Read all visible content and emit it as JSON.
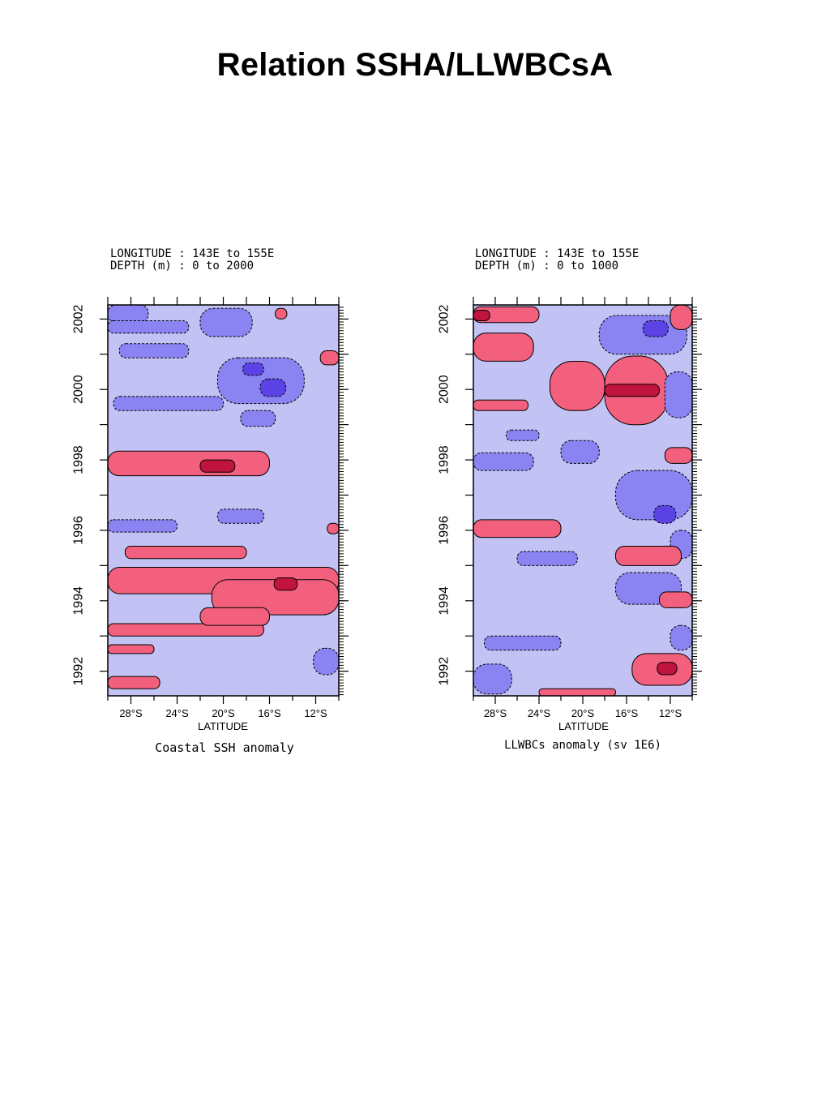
{
  "page": {
    "title": "Relation SSHA/LLWBCsA"
  },
  "colors": {
    "background": "#c2c2f4",
    "negative_1": "#8a83f2",
    "negative_2": "#5b43e6",
    "positive_1": "#f2607d",
    "positive_2": "#c0143e",
    "contour": "#000000"
  },
  "chart_data": [
    {
      "type": "heatmap",
      "subtitle_line1": "LONGITUDE : 143E to 155E",
      "subtitle_line2": "DEPTH (m) : 0 to 2000",
      "xlabel": "LATITUDE",
      "caption": "Coastal SSH anomaly",
      "x_ticks": [
        "28°S",
        "24°S",
        "20°S",
        "16°S",
        "12°S"
      ],
      "x_tick_values": [
        -28,
        -24,
        -20,
        -16,
        -12
      ],
      "y_ticks": [
        "1992",
        "1994",
        "1996",
        "1998",
        "2000",
        "2002"
      ],
      "y_tick_values": [
        1992,
        1994,
        1996,
        1998,
        2000,
        2002
      ],
      "xlim": [
        -30,
        -10
      ],
      "ylim": [
        1991.3,
        2002.4
      ],
      "blobs": [
        {
          "level": -1,
          "x": [
            -30,
            -26.5
          ],
          "y": [
            2001.9,
            2002.4
          ]
        },
        {
          "level": -1,
          "x": [
            -30,
            -23
          ],
          "y": [
            2001.6,
            2001.95
          ]
        },
        {
          "level": -1,
          "x": [
            -22,
            -17.5
          ],
          "y": [
            2001.5,
            2002.3
          ]
        },
        {
          "level": -1,
          "x": [
            -29,
            -23
          ],
          "y": [
            2000.9,
            2001.3
          ]
        },
        {
          "level": -1,
          "x": [
            -20.5,
            -13
          ],
          "y": [
            1999.6,
            2000.9
          ]
        },
        {
          "level": -1,
          "x": [
            -29.5,
            -20
          ],
          "y": [
            1999.4,
            1999.8
          ]
        },
        {
          "level": -1,
          "x": [
            -18.5,
            -15.5
          ],
          "y": [
            1998.95,
            1999.4
          ]
        },
        {
          "level": -2,
          "x": [
            -16.8,
            -14.6
          ],
          "y": [
            1999.8,
            2000.3
          ]
        },
        {
          "level": -2,
          "x": [
            -18.3,
            -16.5
          ],
          "y": [
            2000.4,
            2000.75
          ]
        },
        {
          "level": -1,
          "x": [
            -30,
            -24
          ],
          "y": [
            1995.95,
            1996.3
          ]
        },
        {
          "level": -1,
          "x": [
            -20.5,
            -16.5
          ],
          "y": [
            1996.2,
            1996.6
          ]
        },
        {
          "level": -1,
          "x": [
            -12.2,
            -10
          ],
          "y": [
            1991.9,
            1992.65
          ]
        },
        {
          "level": 1,
          "x": [
            -30,
            -16
          ],
          "y": [
            1997.55,
            1998.25
          ]
        },
        {
          "level": 2,
          "x": [
            -22,
            -19
          ],
          "y": [
            1997.65,
            1998.0
          ]
        },
        {
          "level": 1,
          "x": [
            -11.6,
            -10
          ],
          "y": [
            2000.7,
            2001.1
          ]
        },
        {
          "level": 1,
          "x": [
            -15.5,
            -14.5
          ],
          "y": [
            2002.0,
            2002.3
          ]
        },
        {
          "level": 1,
          "x": [
            -28.5,
            -18
          ],
          "y": [
            1995.2,
            1995.55
          ]
        },
        {
          "level": 1,
          "x": [
            -30,
            -10
          ],
          "y": [
            1994.2,
            1994.95
          ]
        },
        {
          "level": 1,
          "x": [
            -21,
            -10
          ],
          "y": [
            1993.6,
            1994.6
          ]
        },
        {
          "level": 2,
          "x": [
            -15.6,
            -13.6
          ],
          "y": [
            1994.3,
            1994.65
          ]
        },
        {
          "level": 1,
          "x": [
            -30,
            -16.5
          ],
          "y": [
            1993.0,
            1993.35
          ]
        },
        {
          "level": 1,
          "x": [
            -22,
            -16
          ],
          "y": [
            1993.3,
            1993.8
          ]
        },
        {
          "level": 1,
          "x": [
            -30,
            -26
          ],
          "y": [
            1992.5,
            1992.75
          ]
        },
        {
          "level": 1,
          "x": [
            -30,
            -25.5
          ],
          "y": [
            1991.5,
            1991.85
          ]
        },
        {
          "level": 1,
          "x": [
            -11,
            -10
          ],
          "y": [
            1995.9,
            1996.2
          ]
        }
      ]
    },
    {
      "type": "heatmap",
      "subtitle_line1": "LONGITUDE : 143E to 155E",
      "subtitle_line2": "DEPTH (m) : 0 to 1000",
      "xlabel": "LATITUDE",
      "caption": "LLWBCs anomaly (sv 1E6)",
      "x_ticks": [
        "28°S",
        "24°S",
        "20°S",
        "16°S",
        "12°S"
      ],
      "x_tick_values": [
        -28,
        -24,
        -20,
        -16,
        -12
      ],
      "y_ticks": [
        "1992",
        "1994",
        "1996",
        "1998",
        "2000",
        "2002"
      ],
      "y_tick_values": [
        1992,
        1994,
        1996,
        1998,
        2000,
        2002
      ],
      "xlim": [
        -30,
        -10
      ],
      "ylim": [
        1991.3,
        2002.4
      ],
      "blobs": [
        {
          "level": 1,
          "x": [
            -30,
            -24
          ],
          "y": [
            2001.9,
            2002.35
          ]
        },
        {
          "level": 2,
          "x": [
            -30,
            -28.5
          ],
          "y": [
            2001.95,
            2002.25
          ]
        },
        {
          "level": 1,
          "x": [
            -30,
            -24.5
          ],
          "y": [
            2000.8,
            2001.6
          ]
        },
        {
          "level": -1,
          "x": [
            -18.5,
            -10.5
          ],
          "y": [
            2001.0,
            2002.1
          ]
        },
        {
          "level": -2,
          "x": [
            -14.5,
            -12.2
          ],
          "y": [
            2001.5,
            2001.95
          ]
        },
        {
          "level": 1,
          "x": [
            -12,
            -10
          ],
          "y": [
            2001.7,
            2002.4
          ]
        },
        {
          "level": 1,
          "x": [
            -18,
            -12.2
          ],
          "y": [
            1999.0,
            2000.95
          ]
        },
        {
          "level": 1,
          "x": [
            -23,
            -18
          ],
          "y": [
            1999.4,
            2000.8
          ]
        },
        {
          "level": 2,
          "x": [
            -18,
            -13
          ],
          "y": [
            1999.8,
            2000.15
          ]
        },
        {
          "level": -1,
          "x": [
            -12.5,
            -10
          ],
          "y": [
            1999.2,
            2000.5
          ]
        },
        {
          "level": 1,
          "x": [
            -30,
            -25
          ],
          "y": [
            1999.4,
            1999.7
          ]
        },
        {
          "level": -1,
          "x": [
            -22,
            -18.5
          ],
          "y": [
            1997.9,
            1998.55
          ]
        },
        {
          "level": -1,
          "x": [
            -30,
            -24.5
          ],
          "y": [
            1997.7,
            1998.2
          ]
        },
        {
          "level": -1,
          "x": [
            -27,
            -24
          ],
          "y": [
            1998.55,
            1998.85
          ]
        },
        {
          "level": 1,
          "x": [
            -12.5,
            -10
          ],
          "y": [
            1997.9,
            1998.35
          ]
        },
        {
          "level": -1,
          "x": [
            -17,
            -10
          ],
          "y": [
            1996.3,
            1997.7
          ]
        },
        {
          "level": -2,
          "x": [
            -13.5,
            -11.5
          ],
          "y": [
            1996.2,
            1996.7
          ]
        },
        {
          "level": 1,
          "x": [
            -30,
            -22
          ],
          "y": [
            1995.8,
            1996.3
          ]
        },
        {
          "level": -1,
          "x": [
            -12,
            -10
          ],
          "y": [
            1995.2,
            1996.0
          ]
        },
        {
          "level": 1,
          "x": [
            -17,
            -11
          ],
          "y": [
            1995.0,
            1995.55
          ]
        },
        {
          "level": -1,
          "x": [
            -17,
            -11
          ],
          "y": [
            1993.9,
            1994.8
          ]
        },
        {
          "level": -1,
          "x": [
            -26,
            -20.5
          ],
          "y": [
            1995.0,
            1995.4
          ]
        },
        {
          "level": 1,
          "x": [
            -13,
            -10
          ],
          "y": [
            1993.8,
            1994.25
          ]
        },
        {
          "level": -1,
          "x": [
            -29,
            -22
          ],
          "y": [
            1992.6,
            1993.0
          ]
        },
        {
          "level": -1,
          "x": [
            -30,
            -26.5
          ],
          "y": [
            1991.35,
            1992.2
          ]
        },
        {
          "level": 1,
          "x": [
            -15.5,
            -10
          ],
          "y": [
            1991.6,
            1992.5
          ]
        },
        {
          "level": 2,
          "x": [
            -13.2,
            -11.4
          ],
          "y": [
            1991.9,
            1992.25
          ]
        },
        {
          "level": -1,
          "x": [
            -12,
            -10
          ],
          "y": [
            1992.6,
            1993.3
          ]
        },
        {
          "level": 1,
          "x": [
            -24,
            -17
          ],
          "y": [
            1991.3,
            1991.5
          ]
        }
      ]
    }
  ]
}
